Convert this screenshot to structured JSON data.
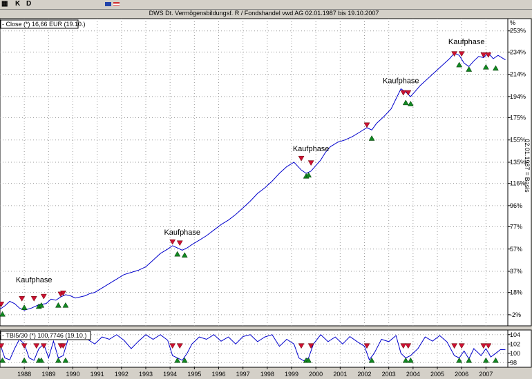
{
  "toolbar": {
    "grid_icon": "grid-icon",
    "k_label": "K",
    "d_label": "D",
    "flag_icons": [
      "eu-flag-icon",
      "us-flag-icon"
    ]
  },
  "chart_data": [
    {
      "type": "line",
      "title": "DWS Dt. Vermögensbildungsf. R / Fondshandel vwd AG 02.01.1987 bis 19.10.2007",
      "legend": "- Close (*) 16,66 EUR (19.10.)",
      "legend_position": "top-left",
      "y_axis_label": "02.01.1987 = Basis",
      "y_ticks": [
        "-2%",
        "18%",
        "37%",
        "57%",
        "77%",
        "96%",
        "116%",
        "135%",
        "155%",
        "175%",
        "194%",
        "214%",
        "234%",
        "253%"
      ],
      "y_axis_corner": "%",
      "ylim": [
        -12,
        264
      ],
      "x_ticks": [
        "1988",
        "1989",
        "1990",
        "1991",
        "1992",
        "1993",
        "1994",
        "1995",
        "1996",
        "1997",
        "1998",
        "1999",
        "2000",
        "2001",
        "2002",
        "2003",
        "2004",
        "2005",
        "2006",
        "2007"
      ],
      "xlim": [
        1987.0,
        2007.9
      ],
      "grid": true,
      "series": [
        {
          "color": "#0000cc",
          "points": [
            [
              1987.0,
              3
            ],
            [
              1987.2,
              6
            ],
            [
              1987.4,
              10
            ],
            [
              1987.6,
              8
            ],
            [
              1987.8,
              4
            ],
            [
              1988.0,
              2
            ],
            [
              1988.3,
              4
            ],
            [
              1988.6,
              7
            ],
            [
              1988.9,
              8
            ],
            [
              1989.1,
              12
            ],
            [
              1989.3,
              11
            ],
            [
              1989.5,
              14
            ],
            [
              1989.7,
              16
            ],
            [
              1989.9,
              15
            ],
            [
              1990.1,
              13
            ],
            [
              1990.3,
              14
            ],
            [
              1990.5,
              15
            ],
            [
              1990.7,
              17
            ],
            [
              1990.9,
              18
            ],
            [
              1991.2,
              22
            ],
            [
              1991.5,
              26
            ],
            [
              1991.8,
              30
            ],
            [
              1992.1,
              34
            ],
            [
              1992.4,
              36
            ],
            [
              1992.7,
              38
            ],
            [
              1993.0,
              41
            ],
            [
              1993.3,
              47
            ],
            [
              1993.6,
              53
            ],
            [
              1993.9,
              57
            ],
            [
              1994.1,
              60
            ],
            [
              1994.3,
              58
            ],
            [
              1994.5,
              56
            ],
            [
              1994.7,
              58
            ],
            [
              1994.9,
              61
            ],
            [
              1995.2,
              65
            ],
            [
              1995.5,
              69
            ],
            [
              1995.8,
              74
            ],
            [
              1996.1,
              79
            ],
            [
              1996.4,
              83
            ],
            [
              1996.7,
              88
            ],
            [
              1997.0,
              94
            ],
            [
              1997.3,
              100
            ],
            [
              1997.6,
              107
            ],
            [
              1997.9,
              112
            ],
            [
              1998.2,
              118
            ],
            [
              1998.5,
              125
            ],
            [
              1998.8,
              131
            ],
            [
              1999.1,
              135
            ],
            [
              1999.4,
              128
            ],
            [
              1999.6,
              125
            ],
            [
              1999.8,
              127
            ],
            [
              2000.0,
              132
            ],
            [
              2000.2,
              137
            ],
            [
              2000.4,
              144
            ],
            [
              2000.6,
              149
            ],
            [
              2000.9,
              153
            ],
            [
              2001.2,
              155
            ],
            [
              2001.5,
              158
            ],
            [
              2001.8,
              162
            ],
            [
              2002.1,
              166
            ],
            [
              2002.3,
              164
            ],
            [
              2002.5,
              170
            ],
            [
              2002.8,
              176
            ],
            [
              2003.1,
              183
            ],
            [
              2003.3,
              192
            ],
            [
              2003.5,
              201
            ],
            [
              2003.7,
              198
            ],
            [
              2003.9,
              194
            ],
            [
              2004.1,
              199
            ],
            [
              2004.3,
              204
            ],
            [
              2004.6,
              210
            ],
            [
              2004.9,
              216
            ],
            [
              2005.2,
              222
            ],
            [
              2005.5,
              228
            ],
            [
              2005.7,
              233
            ],
            [
              2005.9,
              231
            ],
            [
              2006.1,
              224
            ],
            [
              2006.3,
              221
            ],
            [
              2006.5,
              226
            ],
            [
              2006.7,
              230
            ],
            [
              2006.9,
              229
            ],
            [
              2007.1,
              233
            ],
            [
              2007.3,
              228
            ],
            [
              2007.5,
              231
            ],
            [
              2007.8,
              227
            ]
          ]
        }
      ],
      "sell_markers": [
        [
          1987.05,
          7
        ],
        [
          1987.9,
          12
        ],
        [
          1988.4,
          12
        ],
        [
          1988.8,
          14
        ],
        [
          1989.5,
          16
        ],
        [
          1989.6,
          17
        ],
        [
          1994.1,
          63
        ],
        [
          1994.4,
          62
        ],
        [
          1999.4,
          138
        ],
        [
          1999.8,
          134
        ],
        [
          2002.1,
          168
        ],
        [
          2003.6,
          197
        ],
        [
          2003.8,
          197
        ],
        [
          2005.7,
          232
        ],
        [
          2006.0,
          232
        ],
        [
          2006.9,
          231
        ],
        [
          2007.1,
          231
        ]
      ],
      "buy_markers": [
        [
          1987.1,
          -1
        ],
        [
          1988.0,
          5
        ],
        [
          1988.6,
          6
        ],
        [
          1988.7,
          7
        ],
        [
          1989.4,
          7
        ],
        [
          1989.7,
          7
        ],
        [
          1994.3,
          53
        ],
        [
          1994.6,
          52
        ],
        [
          1999.6,
          123
        ],
        [
          1999.7,
          124
        ],
        [
          2002.3,
          157
        ],
        [
          2003.7,
          189
        ],
        [
          2003.9,
          188
        ],
        [
          2005.9,
          223
        ],
        [
          2006.3,
          219
        ],
        [
          2007.0,
          221
        ],
        [
          2007.4,
          220
        ]
      ],
      "annotations": [
        {
          "text": "Kaufphase",
          "x": 1988.4,
          "y": 27
        },
        {
          "text": "Kaufphase",
          "x": 1994.5,
          "y": 70
        },
        {
          "text": "Kaufphase",
          "x": 1999.8,
          "y": 145
        },
        {
          "text": "Kaufphase",
          "x": 2003.5,
          "y": 206
        },
        {
          "text": "Kaufphase",
          "x": 2006.2,
          "y": 241
        }
      ]
    },
    {
      "type": "line",
      "legend": "- TBI5/30 (*) 100,7746 (19.10.)",
      "legend_position": "top-left",
      "y_ticks": [
        "98",
        "100",
        "102",
        "104"
      ],
      "ylim": [
        97,
        105
      ],
      "x_ticks": [
        "1988",
        "1989",
        "1990",
        "1991",
        "1992",
        "1993",
        "1994",
        "1995",
        "1996",
        "1997",
        "1998",
        "1999",
        "2000",
        "2001",
        "2002",
        "2003",
        "2004",
        "2005",
        "2006",
        "2007"
      ],
      "xlim": [
        1987.0,
        2007.9
      ],
      "grid": true,
      "series": [
        {
          "color": "#0000cc",
          "points": [
            [
              1987.0,
              102
            ],
            [
              1987.2,
              99
            ],
            [
              1987.4,
              98.6
            ],
            [
              1987.6,
              101
            ],
            [
              1987.8,
              103
            ],
            [
              1988.0,
              102
            ],
            [
              1988.2,
              99
            ],
            [
              1988.4,
              98.5
            ],
            [
              1988.6,
              101
            ],
            [
              1988.8,
              102
            ],
            [
              1989.0,
              99
            ],
            [
              1989.2,
              102.6
            ],
            [
              1989.4,
              99
            ],
            [
              1989.6,
              99.5
            ],
            [
              1989.8,
              103
            ],
            [
              1990.0,
              104
            ],
            [
              1990.3,
              103.5
            ],
            [
              1990.6,
              103
            ],
            [
              1990.9,
              102
            ],
            [
              1991.2,
              103.5
            ],
            [
              1991.5,
              103
            ],
            [
              1991.8,
              104
            ],
            [
              1992.1,
              102.8
            ],
            [
              1992.4,
              101
            ],
            [
              1992.7,
              102.6
            ],
            [
              1993.0,
              104
            ],
            [
              1993.3,
              103
            ],
            [
              1993.6,
              104
            ],
            [
              1993.9,
              102.8
            ],
            [
              1994.1,
              99.5
            ],
            [
              1994.3,
              99
            ],
            [
              1994.5,
              98.5
            ],
            [
              1994.7,
              100
            ],
            [
              1994.9,
              102
            ],
            [
              1995.2,
              103.5
            ],
            [
              1995.5,
              103
            ],
            [
              1995.8,
              104
            ],
            [
              1996.1,
              102.6
            ],
            [
              1996.4,
              103.5
            ],
            [
              1996.7,
              102
            ],
            [
              1997.0,
              103.6
            ],
            [
              1997.3,
              104
            ],
            [
              1997.6,
              102.5
            ],
            [
              1997.9,
              103.5
            ],
            [
              1998.2,
              104
            ],
            [
              1998.5,
              101.5
            ],
            [
              1998.8,
              103
            ],
            [
              1999.1,
              102
            ],
            [
              1999.3,
              99
            ],
            [
              1999.5,
              98.4
            ],
            [
              1999.7,
              99
            ],
            [
              1999.9,
              102
            ],
            [
              2000.2,
              104
            ],
            [
              2000.5,
              102.5
            ],
            [
              2000.8,
              103.5
            ],
            [
              2001.1,
              102
            ],
            [
              2001.4,
              103.6
            ],
            [
              2001.7,
              102.5
            ],
            [
              2002.0,
              101.5
            ],
            [
              2002.2,
              98.6
            ],
            [
              2002.4,
              100
            ],
            [
              2002.7,
              103
            ],
            [
              2003.0,
              102.5
            ],
            [
              2003.3,
              103.8
            ],
            [
              2003.5,
              100
            ],
            [
              2003.7,
              99
            ],
            [
              2003.9,
              99.5
            ],
            [
              2004.2,
              101
            ],
            [
              2004.5,
              103.5
            ],
            [
              2004.8,
              102.6
            ],
            [
              2005.1,
              103.8
            ],
            [
              2005.4,
              102.4
            ],
            [
              2005.7,
              99.5
            ],
            [
              2005.9,
              99
            ],
            [
              2006.1,
              100.5
            ],
            [
              2006.3,
              98.8
            ],
            [
              2006.5,
              101
            ],
            [
              2006.8,
              99.5
            ],
            [
              2007.0,
              101
            ],
            [
              2007.2,
              99.2
            ],
            [
              2007.4,
              100
            ],
            [
              2007.6,
              100.8
            ],
            [
              2007.8,
              100.77
            ]
          ]
        }
      ],
      "sell_markers": [
        [
          1987.05,
          101.5
        ],
        [
          1988.0,
          101.5
        ],
        [
          1988.5,
          101.5
        ],
        [
          1988.8,
          101.5
        ],
        [
          1989.5,
          101.5
        ],
        [
          1989.6,
          101.5
        ],
        [
          1994.1,
          101.5
        ],
        [
          1994.4,
          101.5
        ],
        [
          1999.4,
          101.5
        ],
        [
          1999.8,
          101.5
        ],
        [
          2002.1,
          101.5
        ],
        [
          2003.6,
          101.5
        ],
        [
          2003.8,
          101.5
        ],
        [
          2005.7,
          101.5
        ],
        [
          2006.0,
          101.5
        ],
        [
          2006.9,
          101.5
        ],
        [
          2007.1,
          101.5
        ]
      ],
      "buy_markers": [
        [
          1987.1,
          98.6
        ],
        [
          1988.0,
          98.6
        ],
        [
          1988.6,
          98.6
        ],
        [
          1988.7,
          98.6
        ],
        [
          1989.4,
          98.6
        ],
        [
          1989.7,
          98.6
        ],
        [
          1994.3,
          98.6
        ],
        [
          1994.6,
          98.6
        ],
        [
          1999.6,
          98.6
        ],
        [
          1999.7,
          98.6
        ],
        [
          2002.3,
          98.6
        ],
        [
          2003.7,
          98.6
        ],
        [
          2003.9,
          98.6
        ],
        [
          2005.9,
          98.6
        ],
        [
          2006.3,
          98.6
        ],
        [
          2007.0,
          98.6
        ],
        [
          2007.4,
          98.6
        ]
      ]
    }
  ]
}
